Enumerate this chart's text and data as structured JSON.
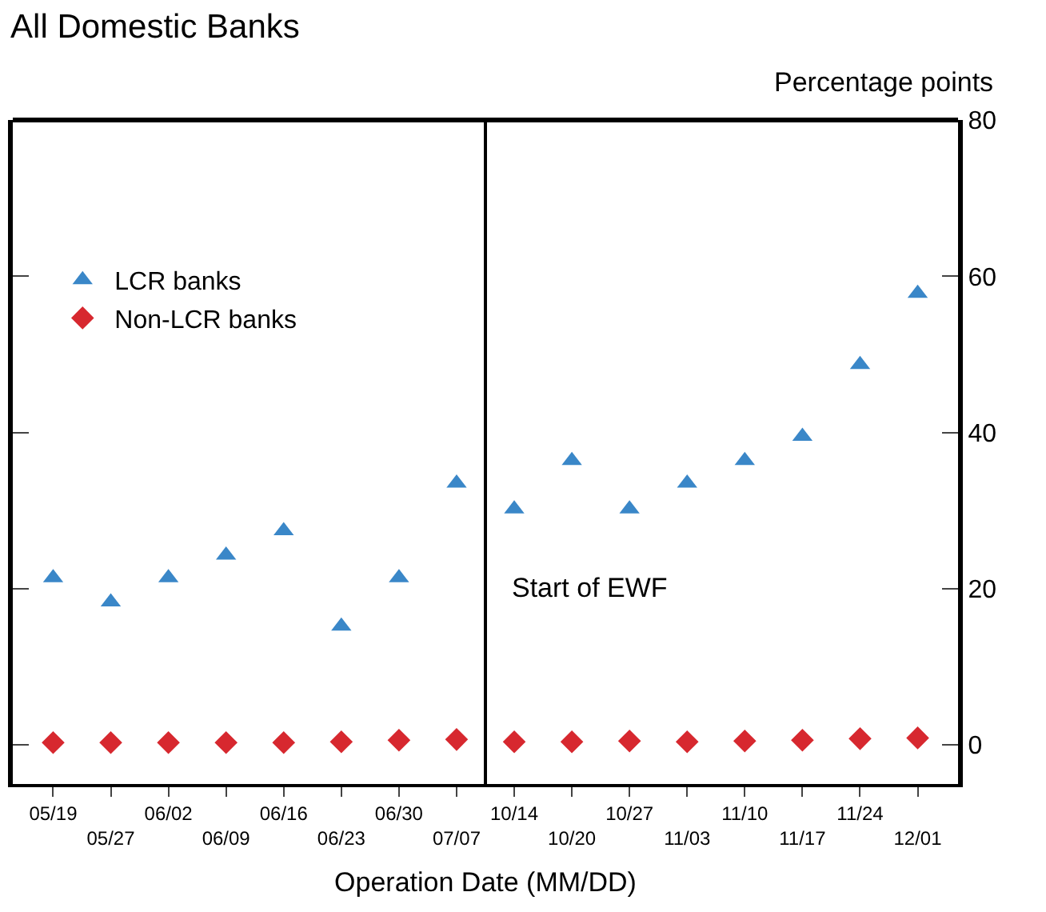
{
  "chart_data": {
    "type": "scatter",
    "title": "All Domestic Banks",
    "xlabel": "Operation Date (MM/DD)",
    "ylabel": "Percentage points",
    "categories": [
      "05/19",
      "05/27",
      "06/02",
      "06/09",
      "06/16",
      "06/23",
      "06/30",
      "07/07",
      "10/14",
      "10/20",
      "10/27",
      "11/03",
      "11/10",
      "11/17",
      "11/24",
      "12/01"
    ],
    "series": [
      {
        "name": "LCR banks",
        "color": "#3a87c8",
        "marker": "triangle",
        "values": [
          21.4,
          18.3,
          21.4,
          24.3,
          27.4,
          15.2,
          21.4,
          33.5,
          30.2,
          36.4,
          30.2,
          33.5,
          36.4,
          39.5,
          48.7,
          57.8
        ]
      },
      {
        "name": "Non-LCR banks",
        "color": "#d7282f",
        "marker": "diamond",
        "values": [
          0.3,
          0.3,
          0.3,
          0.3,
          0.3,
          0.4,
          0.6,
          0.7,
          0.4,
          0.4,
          0.5,
          0.4,
          0.5,
          0.6,
          0.8,
          0.9
        ]
      }
    ],
    "ylim": [
      -5,
      80
    ],
    "yticks": [
      0,
      20,
      40,
      60,
      80
    ],
    "legend": "top left",
    "annotations": [
      "Start of EWF"
    ]
  }
}
